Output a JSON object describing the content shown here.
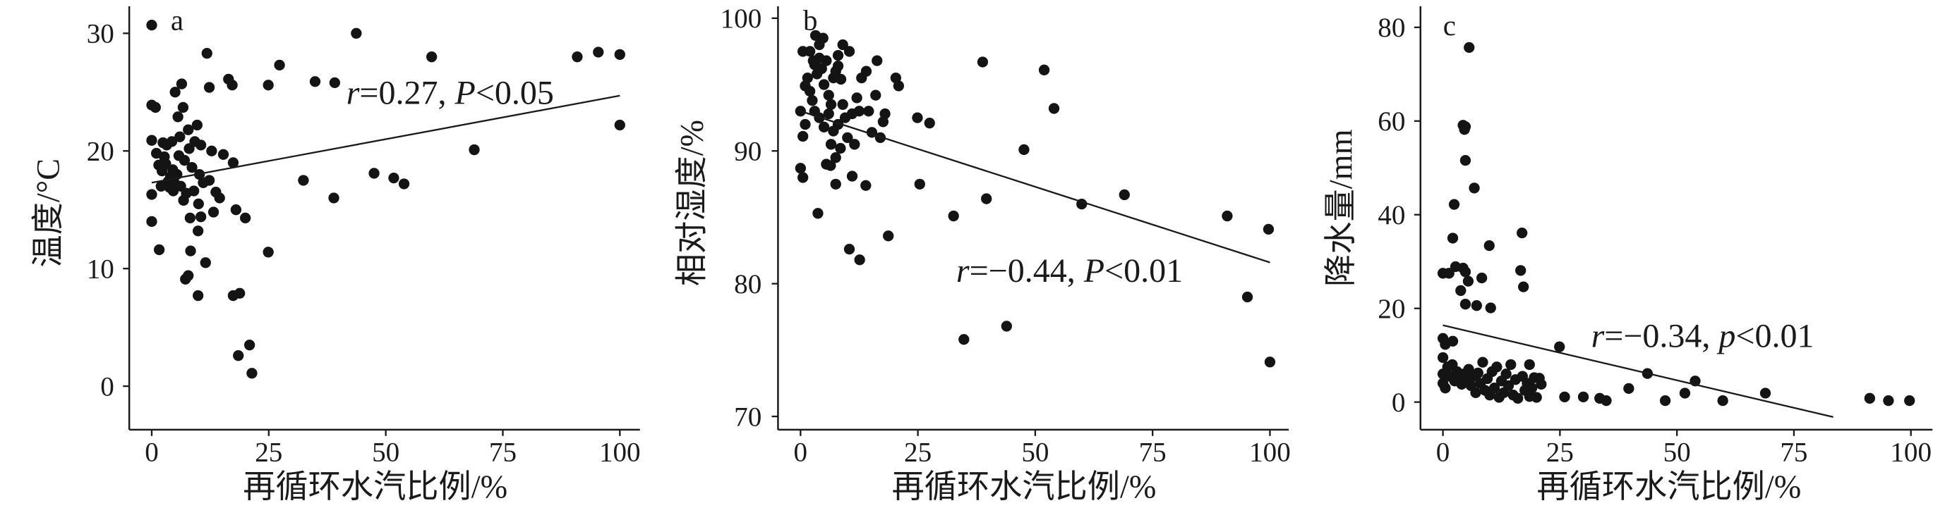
{
  "chart_data": [
    {
      "type": "scatter",
      "panel_label": "a",
      "xlabel": "再循环水汽比例/%",
      "ylabel": "温度/°C",
      "xlim": [
        -4.8,
        104.3
      ],
      "ylim": [
        -3.7,
        32.3
      ],
      "xticks": [
        0,
        25,
        50,
        75,
        100
      ],
      "yticks": [
        0,
        10,
        20,
        30
      ],
      "grid": false,
      "legend": "none",
      "annotation": {
        "stat": "r",
        "stat_value": "=0.27, ",
        "p_symbol": "P",
        "p_value": "<0.05"
      },
      "fit_line": {
        "x": [
          0,
          100
        ],
        "y": [
          17.3,
          24.7
        ]
      },
      "points": [
        [
          0,
          30.7
        ],
        [
          0,
          23.9
        ],
        [
          0.8,
          23.7
        ],
        [
          0,
          20.9
        ],
        [
          0,
          16.3
        ],
        [
          0,
          14.0
        ],
        [
          1.6,
          11.6
        ],
        [
          2.4,
          20.7
        ],
        [
          3.2,
          20.5
        ],
        [
          4.3,
          20.8
        ],
        [
          1.5,
          18.8
        ],
        [
          2.2,
          18.3
        ],
        [
          2.7,
          19.5
        ],
        [
          3.0,
          18.9
        ],
        [
          3.5,
          17.4
        ],
        [
          4.0,
          17.8
        ],
        [
          4.5,
          18.4
        ],
        [
          5.0,
          17.2
        ],
        [
          5.4,
          18.0
        ],
        [
          5.8,
          19.6
        ],
        [
          6.2,
          17.0
        ],
        [
          3.8,
          16.9
        ],
        [
          4.6,
          16.6
        ],
        [
          5.0,
          25.0
        ],
        [
          6.4,
          25.7
        ],
        [
          6.7,
          23.7
        ],
        [
          5.6,
          22.9
        ],
        [
          7.8,
          21.8
        ],
        [
          9.7,
          22.2
        ],
        [
          9.2,
          20.8
        ],
        [
          8.0,
          20.2
        ],
        [
          10.5,
          20.5
        ],
        [
          7.0,
          19.2
        ],
        [
          8.6,
          18.6
        ],
        [
          10.2,
          18.0
        ],
        [
          11.0,
          17.3
        ],
        [
          7.4,
          16.4
        ],
        [
          6.8,
          15.8
        ],
        [
          9.0,
          16.6
        ],
        [
          10.0,
          15.5
        ],
        [
          8.2,
          14.3
        ],
        [
          11.8,
          28.3
        ],
        [
          12.3,
          25.4
        ],
        [
          16.4,
          26.1
        ],
        [
          17.2,
          25.6
        ],
        [
          15.3,
          19.7
        ],
        [
          17.4,
          19.0
        ],
        [
          18.0,
          15.0
        ],
        [
          20.0,
          14.3
        ],
        [
          12.3,
          17.5
        ],
        [
          13.7,
          16.5
        ],
        [
          10.5,
          14.4
        ],
        [
          9.9,
          13.2
        ],
        [
          11.5,
          10.5
        ],
        [
          8.3,
          11.5
        ],
        [
          7.8,
          9.4
        ],
        [
          7.2,
          9.1
        ],
        [
          9.9,
          7.7
        ],
        [
          17.4,
          7.7
        ],
        [
          18.8,
          7.9
        ],
        [
          18.5,
          2.6
        ],
        [
          20.9,
          3.5
        ],
        [
          21.4,
          1.1
        ],
        [
          24.9,
          11.4
        ],
        [
          24.9,
          25.6
        ],
        [
          27.3,
          27.3
        ],
        [
          32.4,
          17.5
        ],
        [
          34.9,
          25.9
        ],
        [
          39.1,
          25.8
        ],
        [
          38.9,
          16.0
        ],
        [
          43.7,
          30.0
        ],
        [
          47.5,
          18.1
        ],
        [
          51.7,
          17.7
        ],
        [
          53.9,
          17.2
        ],
        [
          59.8,
          28.0
        ],
        [
          68.9,
          20.1
        ],
        [
          90.9,
          28.0
        ],
        [
          95.4,
          28.4
        ],
        [
          100,
          28.2
        ],
        [
          100,
          22.2
        ],
        [
          13.2,
          14.8
        ],
        [
          14.5,
          16.0
        ],
        [
          12.8,
          20.0
        ],
        [
          6.0,
          21.2
        ],
        [
          1.0,
          19.8
        ],
        [
          2.0,
          17.0
        ]
      ]
    },
    {
      "type": "scatter",
      "panel_label": "b",
      "xlabel": "再循环水汽比例/%",
      "ylabel": "相对湿度/%",
      "xlim": [
        -4.8,
        104.0
      ],
      "ylim": [
        69.0,
        100.9
      ],
      "xticks": [
        0,
        25,
        50,
        75,
        100
      ],
      "yticks": [
        70,
        80,
        90,
        100
      ],
      "grid": false,
      "legend": "none",
      "annotation": {
        "stat": "r",
        "stat_value": "=−0.44, ",
        "p_symbol": "P",
        "p_value": "<0.01"
      },
      "fit_line": {
        "x": [
          0,
          100
        ],
        "y": [
          93.0,
          81.6
        ]
      },
      "points": [
        [
          0.5,
          97.5
        ],
        [
          1,
          94.9
        ],
        [
          0,
          93.0
        ],
        [
          0.5,
          91.1
        ],
        [
          0,
          88.7
        ],
        [
          0.5,
          88.0
        ],
        [
          3.2,
          98.7
        ],
        [
          2.7,
          96.8
        ],
        [
          4.8,
          98.5
        ],
        [
          1.5,
          95.5
        ],
        [
          2.0,
          94.5
        ],
        [
          2.5,
          93.8
        ],
        [
          3.0,
          96.5
        ],
        [
          3.5,
          95.8
        ],
        [
          4.0,
          97.0
        ],
        [
          4.5,
          96.2
        ],
        [
          5.0,
          95.0
        ],
        [
          5.5,
          96.8
        ],
        [
          6.0,
          94.2
        ],
        [
          6.5,
          93.5
        ],
        [
          7.0,
          95.5
        ],
        [
          7.5,
          96.0
        ],
        [
          8.0,
          97.2
        ],
        [
          3.0,
          93.0
        ],
        [
          4.0,
          92.5
        ],
        [
          5.0,
          91.8
        ],
        [
          6.0,
          92.8
        ],
        [
          7.0,
          91.5
        ],
        [
          8.0,
          92.0
        ],
        [
          9.0,
          93.5
        ],
        [
          9.5,
          92.5
        ],
        [
          10.0,
          91.0
        ],
        [
          11.0,
          92.8
        ],
        [
          12.0,
          94.0
        ],
        [
          12.5,
          93.0
        ],
        [
          13.0,
          95.5
        ],
        [
          14.0,
          96.0
        ],
        [
          11.5,
          90.5
        ],
        [
          8.5,
          90.2
        ],
        [
          7.5,
          89.5
        ],
        [
          6.5,
          90.5
        ],
        [
          5.5,
          89.0
        ],
        [
          3.7,
          85.3
        ],
        [
          8,
          96.4
        ],
        [
          8.6,
          95.4
        ],
        [
          10.4,
          97.5
        ],
        [
          6.4,
          88.9
        ],
        [
          7.5,
          87.5
        ],
        [
          11,
          88.1
        ],
        [
          10.4,
          82.6
        ],
        [
          12.6,
          81.8
        ],
        [
          13.9,
          87.4
        ],
        [
          15.2,
          91.4
        ],
        [
          16.3,
          96.8
        ],
        [
          17.6,
          92.2
        ],
        [
          18.7,
          83.6
        ],
        [
          20.3,
          95.5
        ],
        [
          20.9,
          94.9
        ],
        [
          24.9,
          92.5
        ],
        [
          27.5,
          92.1
        ],
        [
          25.4,
          87.5
        ],
        [
          32.6,
          85.1
        ],
        [
          34.8,
          75.8
        ],
        [
          38.8,
          96.7
        ],
        [
          39.6,
          86.4
        ],
        [
          43.9,
          76.8
        ],
        [
          47.6,
          90.1
        ],
        [
          51.9,
          96.1
        ],
        [
          54,
          93.2
        ],
        [
          59.9,
          86.0
        ],
        [
          69,
          86.7
        ],
        [
          90.9,
          85.1
        ],
        [
          95.2,
          79.0
        ],
        [
          99.7,
          84.1
        ],
        [
          100,
          74.1
        ],
        [
          17.0,
          91.0
        ],
        [
          18.0,
          92.8
        ],
        [
          16.0,
          94.2
        ],
        [
          2.0,
          97.5
        ],
        [
          4.0,
          98.0
        ],
        [
          9.0,
          98.0
        ],
        [
          1.0,
          92.0
        ],
        [
          14.5,
          93.0
        ]
      ]
    },
    {
      "type": "scatter",
      "panel_label": "c",
      "xlabel": "再循环水汽比例/%",
      "ylabel": "降水量/mm",
      "xlim": [
        -4.8,
        104.6
      ],
      "ylim": [
        -5.9,
        84.5
      ],
      "xticks": [
        0,
        25,
        50,
        75,
        100
      ],
      "yticks": [
        0,
        20,
        40,
        60,
        80
      ],
      "grid": false,
      "legend": "none",
      "annotation": {
        "stat": "r",
        "stat_value": "=−0.34, ",
        "p_symbol": "p",
        "p_value": "<0.01"
      },
      "fit_line": {
        "x": [
          0,
          83.4
        ],
        "y": [
          16.4,
          -3.2
        ]
      },
      "points": [
        [
          5.6,
          75.7
        ],
        [
          4.3,
          59.1
        ],
        [
          4.8,
          58.8
        ],
        [
          4.6,
          58.2
        ],
        [
          4.8,
          51.6
        ],
        [
          6.7,
          45.7
        ],
        [
          2.4,
          42.2
        ],
        [
          2.1,
          35.0
        ],
        [
          9.9,
          33.4
        ],
        [
          16.9,
          36.1
        ],
        [
          16.6,
          28.1
        ],
        [
          17.2,
          24.6
        ],
        [
          0,
          27.5
        ],
        [
          1.3,
          27.5
        ],
        [
          2.7,
          28.9
        ],
        [
          4.3,
          28.6
        ],
        [
          4.8,
          27.8
        ],
        [
          3.8,
          23.8
        ],
        [
          4.8,
          20.9
        ],
        [
          7.2,
          20.6
        ],
        [
          10.2,
          20.1
        ],
        [
          5.4,
          25.8
        ],
        [
          8.3,
          26.5
        ],
        [
          0,
          13.6
        ],
        [
          0.5,
          12.3
        ],
        [
          2.1,
          13.0
        ],
        [
          0,
          9.5
        ],
        [
          0,
          6.0
        ],
        [
          0,
          4.0
        ],
        [
          0.5,
          3.0
        ],
        [
          1.0,
          7.5
        ],
        [
          1.5,
          5.5
        ],
        [
          2.0,
          8.0
        ],
        [
          2.5,
          4.5
        ],
        [
          3.0,
          6.5
        ],
        [
          3.5,
          5.0
        ],
        [
          4.0,
          3.8
        ],
        [
          4.5,
          6.0
        ],
        [
          5.0,
          4.5
        ],
        [
          5.5,
          7.0
        ],
        [
          6.0,
          3.5
        ],
        [
          6.5,
          5.5
        ],
        [
          7.0,
          2.0
        ],
        [
          7.5,
          6.2
        ],
        [
          8.0,
          4.0
        ],
        [
          8.5,
          8.5
        ],
        [
          9.0,
          2.5
        ],
        [
          9.5,
          5.0
        ],
        [
          10.0,
          1.5
        ],
        [
          10.5,
          6.5
        ],
        [
          11.0,
          3.0
        ],
        [
          11.5,
          7.5
        ],
        [
          12.0,
          1.0
        ],
        [
          12.5,
          4.5
        ],
        [
          13.0,
          2.0
        ],
        [
          13.5,
          6.0
        ],
        [
          14.0,
          3.5
        ],
        [
          15.0,
          1.5
        ],
        [
          15.5,
          4.8
        ],
        [
          16.0,
          0.8
        ],
        [
          17.0,
          5.5
        ],
        [
          17.5,
          2.5
        ],
        [
          18.0,
          4.0
        ],
        [
          18.5,
          1.2
        ],
        [
          19.0,
          3.0
        ],
        [
          19.5,
          5.2
        ],
        [
          20.0,
          1.0
        ],
        [
          20.6,
          5.1
        ],
        [
          18.5,
          8.0
        ],
        [
          21.0,
          3.8
        ],
        [
          14.5,
          8.0
        ],
        [
          24.9,
          11.8
        ],
        [
          26,
          1.1
        ],
        [
          30,
          1.1
        ],
        [
          33.5,
          0.8
        ],
        [
          34.9,
          0.3
        ],
        [
          39.7,
          2.9
        ],
        [
          43.7,
          6.1
        ],
        [
          47.5,
          0.3
        ],
        [
          51.7,
          1.9
        ],
        [
          53.9,
          4.5
        ],
        [
          59.8,
          0.3
        ],
        [
          68.9,
          1.9
        ],
        [
          91.2,
          0.8
        ],
        [
          95.2,
          0.3
        ],
        [
          99.7,
          0.3
        ]
      ]
    }
  ]
}
